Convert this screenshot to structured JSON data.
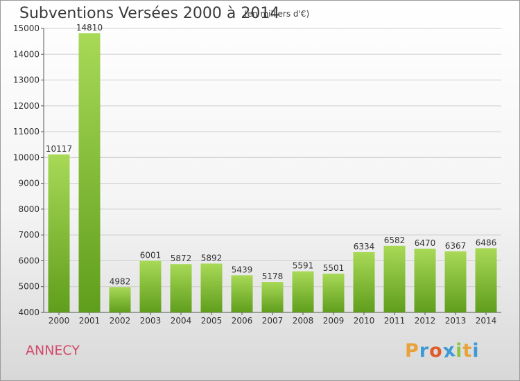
{
  "title": "Subventions Versées 2000 à 2014",
  "subtitle": "(en milliers d'€)",
  "city": "ANNECY",
  "logo": {
    "letters": [
      "P",
      "r",
      "o",
      "x",
      "i",
      "t",
      "i"
    ],
    "colors": [
      "#e8a23a",
      "#3c9ad6",
      "#e05a2a",
      "#3c9ad6",
      "#8cc63f",
      "#e8a23a",
      "#3c9ad6"
    ]
  },
  "colors": {
    "bar_top": "#a8d957",
    "bar_bottom": "#5f9e1c",
    "grid": "#cccccc",
    "text": "#333333"
  },
  "chart_data": {
    "type": "bar",
    "categories": [
      "2000",
      "2001",
      "2002",
      "2003",
      "2004",
      "2005",
      "2006",
      "2007",
      "2008",
      "2009",
      "2010",
      "2011",
      "2012",
      "2013",
      "2014"
    ],
    "values": [
      10117,
      14810,
      4982,
      6001,
      5872,
      5892,
      5439,
      5178,
      5591,
      5501,
      6334,
      6582,
      6470,
      6367,
      6486
    ],
    "title": "Subventions Versées 2000 à 2014",
    "xlabel": "",
    "ylabel": "",
    "ylim": [
      4000,
      15000
    ],
    "yticks": [
      4000,
      5000,
      6000,
      7000,
      8000,
      9000,
      10000,
      11000,
      12000,
      13000,
      14000,
      15000
    ],
    "grid": true
  }
}
